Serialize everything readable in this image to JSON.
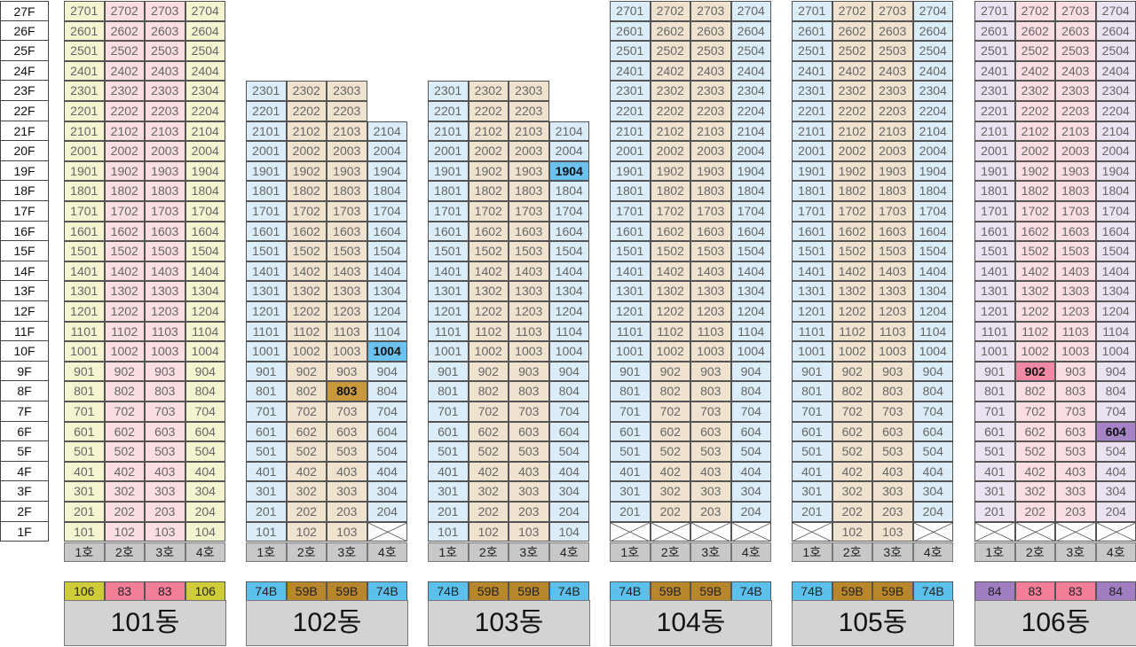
{
  "floors": [
    "27F",
    "26F",
    "25F",
    "24F",
    "23F",
    "22F",
    "21F",
    "20F",
    "19F",
    "18F",
    "17F",
    "16F",
    "15F",
    "14F",
    "13F",
    "12F",
    "11F",
    "10F",
    "9F",
    "8F",
    "7F",
    "6F",
    "5F",
    "4F",
    "3F",
    "2F",
    "1F"
  ],
  "unit_labels": [
    "1호",
    "2호",
    "3호",
    "4호"
  ],
  "buildings": [
    {
      "name": "101동",
      "types": [
        "106",
        "83",
        "83",
        "106"
      ],
      "column_colors": [
        "#f4f4d0",
        "#fbdde4",
        "#fbdde4",
        "#f4f4d0"
      ],
      "type_colors": [
        "#cfcc3a",
        "#f47d98",
        "#f47d98",
        "#cfcc3a"
      ],
      "columns": [
        {
          "top": 27,
          "bottom": 1
        },
        {
          "top": 27,
          "bottom": 1
        },
        {
          "top": 27,
          "bottom": 1
        },
        {
          "top": 27,
          "bottom": 1
        }
      ],
      "highlights": []
    },
    {
      "name": "102동",
      "types": [
        "74B",
        "59B",
        "59B",
        "74B"
      ],
      "column_colors": [
        "#daedf8",
        "#efe3cf",
        "#efe3cf",
        "#daedf8"
      ],
      "type_colors": [
        "#5cc0ec",
        "#b8872c",
        "#b8872c",
        "#5cc0ec"
      ],
      "columns": [
        {
          "top": 23,
          "bottom": 1
        },
        {
          "top": 23,
          "bottom": 1
        },
        {
          "top": 23,
          "bottom": 1
        },
        {
          "top": 21,
          "bottom": 2
        }
      ],
      "highlights": [
        {
          "label": "803",
          "col": 2,
          "floor": 8,
          "color": "#c9973c"
        },
        {
          "label": "1004",
          "col": 3,
          "floor": 10,
          "color": "#6cc2ee"
        }
      ]
    },
    {
      "name": "103동",
      "types": [
        "74B",
        "59B",
        "59B",
        "74B"
      ],
      "column_colors": [
        "#daedf8",
        "#efe3cf",
        "#efe3cf",
        "#daedf8"
      ],
      "type_colors": [
        "#5cc0ec",
        "#b8872c",
        "#b8872c",
        "#5cc0ec"
      ],
      "columns": [
        {
          "top": 23,
          "bottom": 1
        },
        {
          "top": 23,
          "bottom": 1
        },
        {
          "top": 23,
          "bottom": 1
        },
        {
          "top": 21,
          "bottom": 1
        }
      ],
      "highlights": [
        {
          "label": "1904",
          "col": 3,
          "floor": 19,
          "color": "#6cc2ee"
        }
      ]
    },
    {
      "name": "104동",
      "types": [
        "74B",
        "59B",
        "59B",
        "74B"
      ],
      "column_colors": [
        "#daedf8",
        "#efe3cf",
        "#efe3cf",
        "#daedf8"
      ],
      "type_colors": [
        "#5cc0ec",
        "#b8872c",
        "#b8872c",
        "#5cc0ec"
      ],
      "columns": [
        {
          "top": 27,
          "bottom": 2
        },
        {
          "top": 27,
          "bottom": 2
        },
        {
          "top": 27,
          "bottom": 2
        },
        {
          "top": 27,
          "bottom": 2
        }
      ],
      "highlights": []
    },
    {
      "name": "105동",
      "types": [
        "74B",
        "59B",
        "59B",
        "74B"
      ],
      "column_colors": [
        "#daedf8",
        "#efe3cf",
        "#efe3cf",
        "#daedf8"
      ],
      "type_colors": [
        "#5cc0ec",
        "#b8872c",
        "#b8872c",
        "#5cc0ec"
      ],
      "columns": [
        {
          "top": 27,
          "bottom": 2
        },
        {
          "top": 27,
          "bottom": 1
        },
        {
          "top": 27,
          "bottom": 1
        },
        {
          "top": 27,
          "bottom": 2
        }
      ],
      "highlights": []
    },
    {
      "name": "106동",
      "types": [
        "84",
        "83",
        "83",
        "84"
      ],
      "column_colors": [
        "#ebe3f2",
        "#fbdde4",
        "#fbdde4",
        "#ebe3f2"
      ],
      "type_colors": [
        "#a07dbf",
        "#f47d98",
        "#f47d98",
        "#a07dbf"
      ],
      "columns": [
        {
          "top": 27,
          "bottom": 2
        },
        {
          "top": 27,
          "bottom": 2
        },
        {
          "top": 27,
          "bottom": 2
        },
        {
          "top": 27,
          "bottom": 2
        }
      ],
      "highlights": [
        {
          "label": "902",
          "col": 1,
          "floor": 9,
          "color": "#f289a4"
        },
        {
          "label": "604",
          "col": 3,
          "floor": 6,
          "color": "#a583c5"
        }
      ]
    }
  ]
}
